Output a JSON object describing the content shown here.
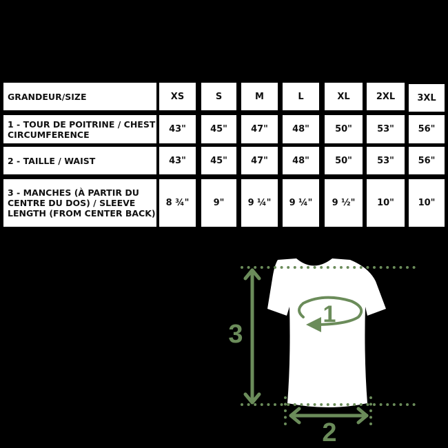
{
  "table": {
    "header": {
      "label": "GRANDEUR/SIZE",
      "sizes": [
        "XS",
        "S",
        "M",
        "L",
        "XL",
        "2XL",
        "3XL"
      ]
    },
    "rows": [
      {
        "label": "1 - TOUR DE POITRINE / CHEST CIRCUMFERENCE",
        "values": [
          "43\"",
          "45\"",
          "47\"",
          "48\"",
          "50\"",
          "53\"",
          "56\""
        ]
      },
      {
        "label": "2 - TAILLE / WAIST",
        "values": [
          "43\"",
          "45\"",
          "47\"",
          "48\"",
          "50\"",
          "53\"",
          "56\""
        ]
      },
      {
        "label": "3 - MANCHES (À PARTIR DU CENTRE DU DOS) / SLEEVE LENGTH (FROM CENTER BACK)",
        "values": [
          "8 ¾\"",
          "9\"",
          "9 ¼\"",
          "9 ¼\"",
          "9 ½\"",
          "10\"",
          "10\""
        ]
      }
    ]
  },
  "diagram": {
    "accent_color": "#6b8c5a",
    "marker_1": "1",
    "marker_2": "2",
    "marker_3": "3"
  }
}
